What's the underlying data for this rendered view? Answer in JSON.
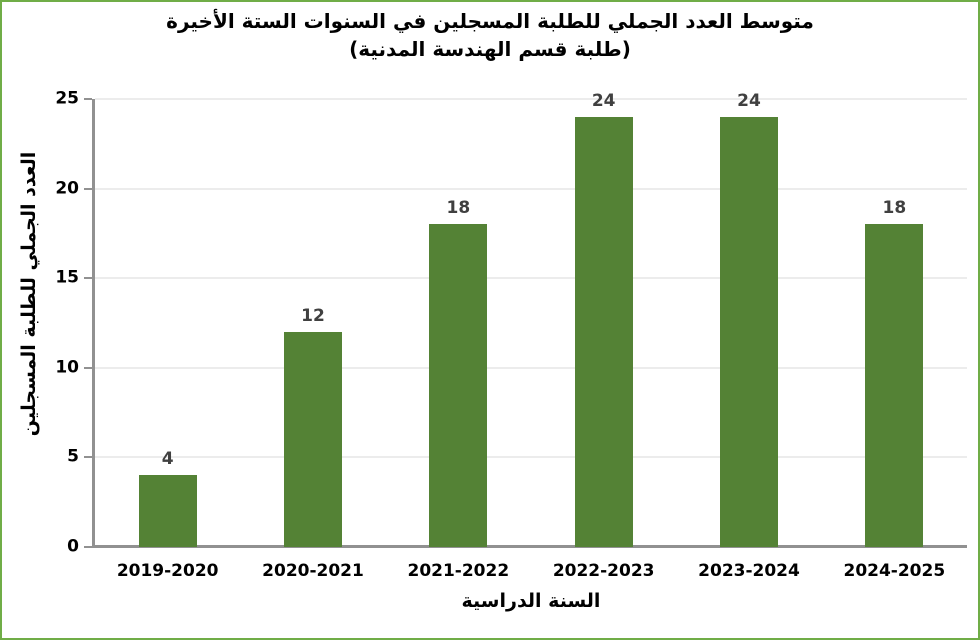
{
  "frame": {
    "border_color": "#70AD47"
  },
  "chart_data": {
    "type": "bar",
    "title_lines": [
      "متوسط العدد الجملي للطلبة المسجلين في السنوات الستة الأخيرة",
      "(طلبة قسم الهندسة المدنية)"
    ],
    "categories": [
      "2019-2020",
      "2020-2021",
      "2021-2022",
      "2022-2023",
      "2023-2024",
      "2024-2025"
    ],
    "values": [
      4,
      12,
      18,
      24,
      24,
      18
    ],
    "data_labels": [
      "4",
      "12",
      "18",
      "24",
      "24",
      "18"
    ],
    "xlabel": "السنة الدراسية",
    "ylabel": "العدد الجملي للطلبة المسجلين",
    "ylim": [
      0,
      25
    ],
    "ytick_step": 5,
    "ytick_labels": [
      "0",
      "5",
      "10",
      "15",
      "20",
      "25"
    ],
    "grid": true,
    "legend": "none",
    "colors": {
      "bar": "#548235",
      "axis": "#919191",
      "gridline": "#d9d9d9",
      "title": "#000000",
      "tick_label": "#000000",
      "data_label": "#404040",
      "frame_border": "#70AD47"
    }
  }
}
